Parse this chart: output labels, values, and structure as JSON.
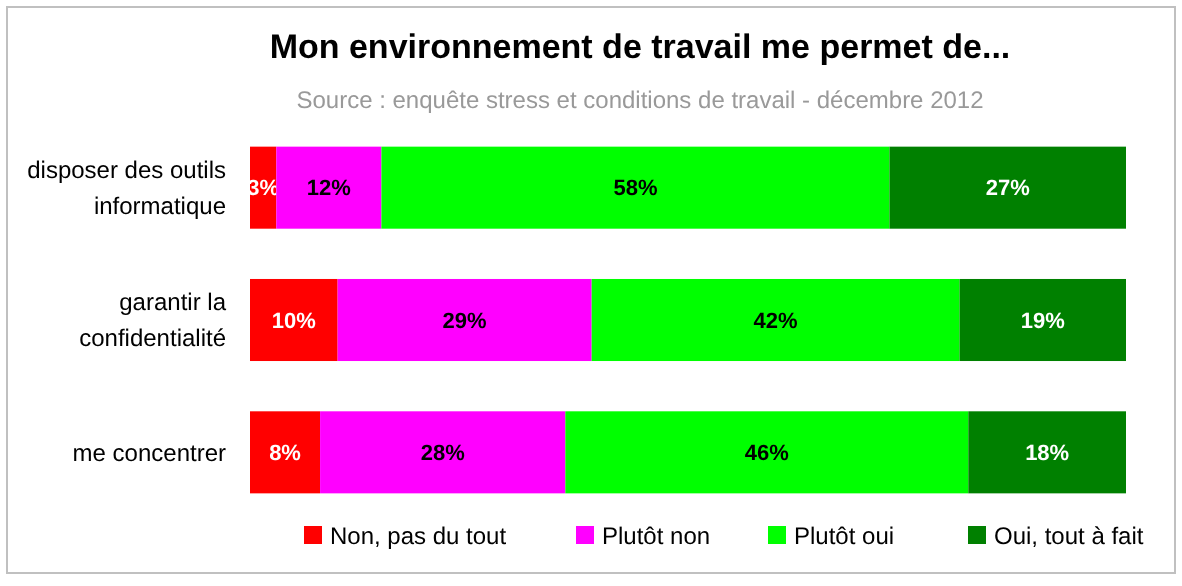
{
  "chart_data": {
    "type": "bar",
    "orientation": "horizontal",
    "stacked": true,
    "title": "Mon environnement de travail me permet de...",
    "subtitle": "Source : enquête stress et conditions de travail - décembre 2012",
    "categories": [
      "disposer des outils informatique",
      "garantir la confidentialité",
      "me concentrer"
    ],
    "series": [
      {
        "name": "Non, pas du tout",
        "color": "#ff0000",
        "values": [
          3,
          10,
          8
        ],
        "value_labels": [
          "3%",
          "10%",
          "8%"
        ]
      },
      {
        "name": "Plutôt non",
        "color": "#ff00ff",
        "values": [
          12,
          29,
          28
        ],
        "value_labels": [
          "12%",
          "29%",
          "28%"
        ]
      },
      {
        "name": "Plutôt oui",
        "color": "#00ff00",
        "values": [
          58,
          42,
          46
        ],
        "value_labels": [
          "58%",
          "42%",
          "46%"
        ]
      },
      {
        "name": "Oui, tout à fait",
        "color": "#008000",
        "values": [
          27,
          19,
          18
        ],
        "value_labels": [
          "27%",
          "19%",
          "18%"
        ]
      }
    ],
    "legend": "bottom"
  }
}
